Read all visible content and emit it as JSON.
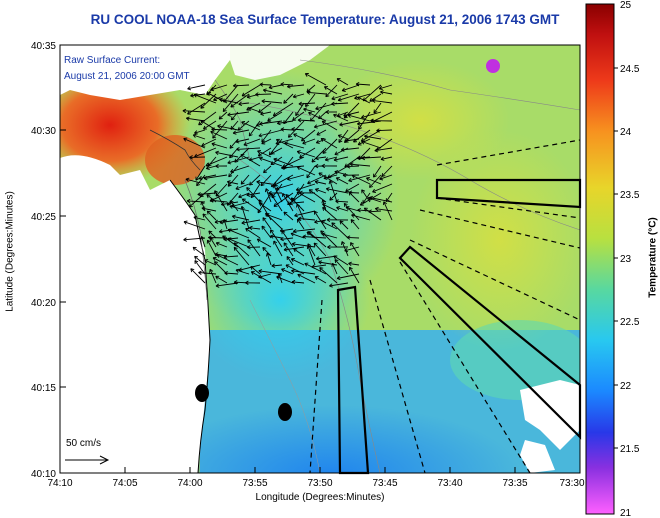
{
  "title": "RU COOL  NOAA-18  Sea Surface Temperature:  August 21, 2006 1743 GMT",
  "annotation": {
    "line1": "Raw Surface Current:",
    "line2": "August 21, 2006 20:00 GMT"
  },
  "scale_label": "50 cm/s",
  "axes": {
    "xlabel": "Longitude (Degrees:Minutes)",
    "ylabel": "Latitude (Degrees:Minutes)",
    "x_ticks": [
      "74:10",
      "74:05",
      "74:00",
      "73:55",
      "73:50",
      "73:45",
      "73:40",
      "73:35",
      "73:30"
    ],
    "y_ticks": [
      "40:35",
      "40:30",
      "40:25",
      "40:20",
      "40:15",
      "40:10"
    ]
  },
  "colorbar": {
    "label": "Temperature (°C)",
    "ticks": [
      "25",
      "24.5",
      "24",
      "23.5",
      "23",
      "22.5",
      "22",
      "21.5",
      "21"
    ]
  },
  "colors": {
    "title": "#1a3aa8",
    "land": "#ffffff",
    "warm": "#c0281a",
    "cool": "#2aa0ff"
  }
}
